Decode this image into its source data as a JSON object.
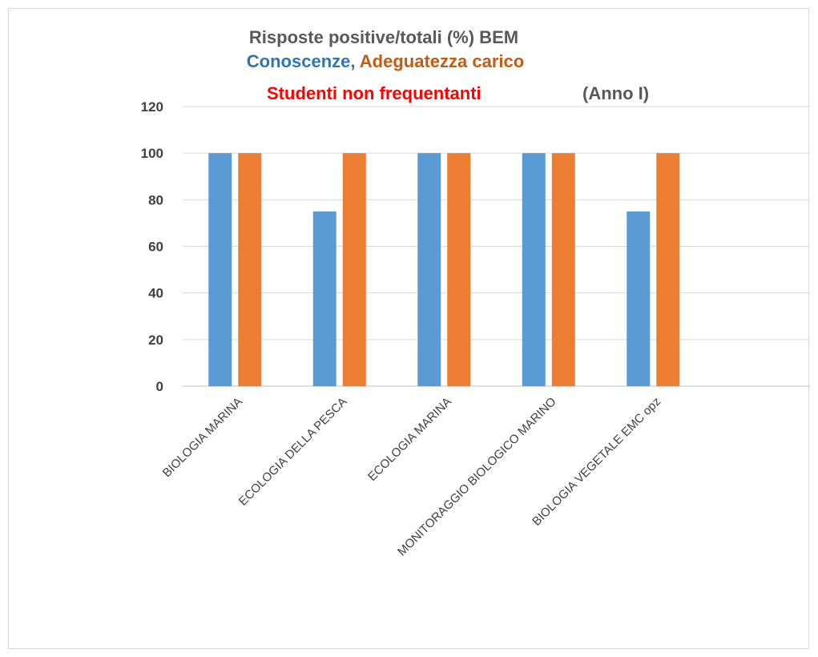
{
  "chart_data": {
    "type": "bar",
    "title": {
      "line1": "Risposte positive/totali (%)  BEM",
      "line2_part1": "Conoscenze",
      "line2_sep": ", ",
      "line2_part2": "Adeguatezza carico",
      "line3_part1": "Studenti non frequentanti",
      "line3_part2": "(Anno I)"
    },
    "categories": [
      "BIOLOGIA MARINA",
      "ECOLOGIA DELLA PESCA",
      "ECOLOGIA MARINA",
      "MONITORAGGIO BIOLOGICO MARINO",
      "BIOLOGIA VEGETALE EMC opz"
    ],
    "series": [
      {
        "values": [
          100,
          75,
          100,
          100,
          75
        ],
        "color": "#5b9bd5"
      },
      {
        "values": [
          100,
          100,
          100,
          100,
          100
        ],
        "color": "#ed7d31"
      }
    ],
    "ylim": [
      0,
      120
    ],
    "yticks": [
      "0",
      "20",
      "40",
      "60",
      "80",
      "100",
      "120"
    ],
    "grid": true,
    "colors": {
      "title_gray": "#595959",
      "conoscenze": "#2e75b6",
      "adeguatezza": "#c55a11",
      "studenti": "#ff0000",
      "gridline": "#d9d9d9",
      "axis": "#bfbfbf"
    }
  }
}
